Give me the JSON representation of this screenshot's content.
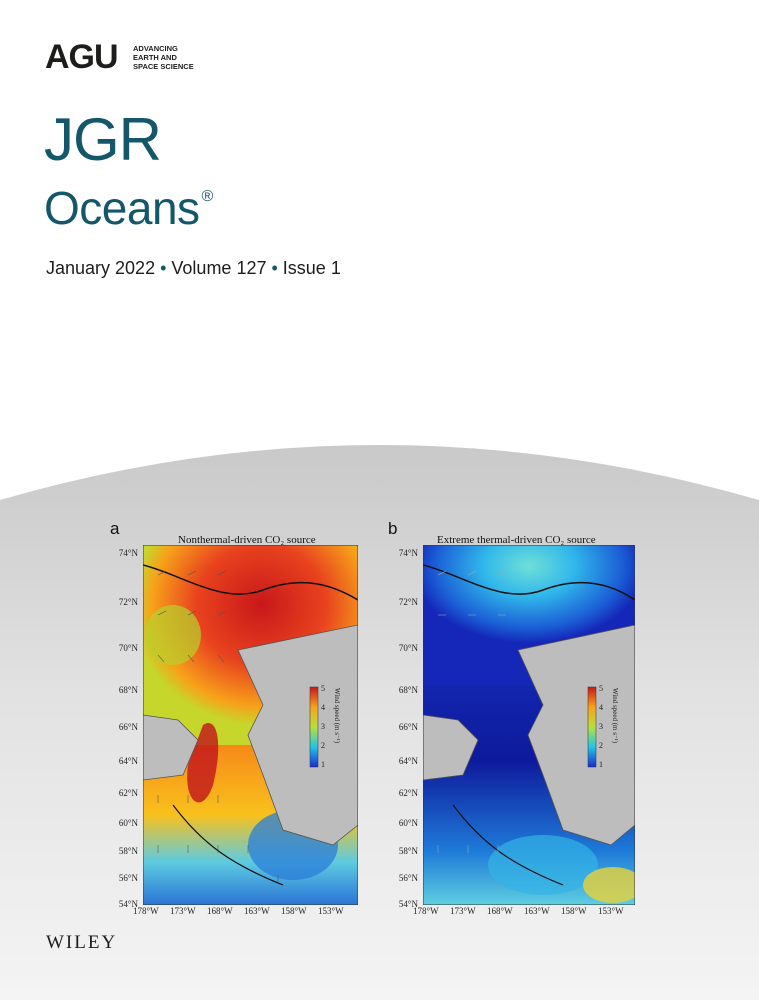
{
  "logo": {
    "wordmark": "AGU",
    "tagline": [
      "ADVANCING",
      "EARTH AND",
      "SPACE SCIENCE"
    ]
  },
  "journal": {
    "line1": "JGR",
    "line2": "Oceans",
    "registered_mark": "®"
  },
  "issue": {
    "month_year": "January 2022",
    "volume": "Volume 127",
    "issue": "Issue 1",
    "separator": "•"
  },
  "figure": {
    "panels": [
      {
        "letter": "a",
        "title": "Nonthermal-driven CO₂ source"
      },
      {
        "letter": "b",
        "title": "Extreme thermal-driven CO₂ source"
      }
    ],
    "lat_ticks": [
      "74°N",
      "72°N",
      "70°N",
      "68°N",
      "66°N",
      "64°N",
      "62°N",
      "60°N",
      "58°N",
      "56°N",
      "54°N"
    ],
    "lon_ticks": [
      "178°W",
      "173°W",
      "168°W",
      "163°W",
      "158°W",
      "153°W"
    ],
    "colorbar": {
      "label": "Wind speed (m s⁻¹)",
      "ticks": [
        "5",
        "4",
        "3",
        "2",
        "1"
      ]
    }
  },
  "publisher": "WILEY",
  "colors": {
    "journal_teal": "#15576a",
    "text_dark": "#1d1d1b",
    "land_gray": "#bdbdbd"
  }
}
